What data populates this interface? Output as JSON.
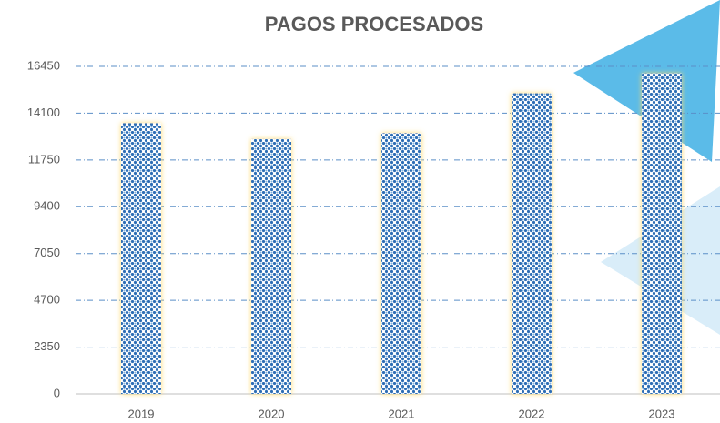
{
  "chart_data": {
    "type": "bar",
    "title": "PAGOS PROCESADOS",
    "categories": [
      "2019",
      "2020",
      "2021",
      "2022",
      "2023"
    ],
    "values": [
      13600,
      12800,
      13100,
      15100,
      16100
    ],
    "color": "#2e6eb5",
    "ylim": [
      0,
      16450
    ],
    "yticks": [
      0,
      2350,
      4700,
      7050,
      9400,
      11750,
      14100,
      16450
    ],
    "grid": true
  }
}
